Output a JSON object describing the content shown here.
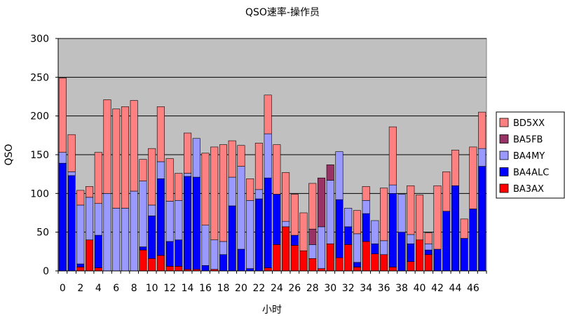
{
  "chart_data": {
    "type": "bar",
    "stacked": true,
    "title": "QSO速率-操作员",
    "xlabel": "小时",
    "ylabel": "QSO",
    "ylim": [
      0,
      300
    ],
    "y_ticks": [
      0,
      50,
      100,
      150,
      200,
      250,
      300
    ],
    "x_tick_labels": [
      "0",
      "2",
      "4",
      "6",
      "8",
      "10",
      "12",
      "14",
      "16",
      "18",
      "20",
      "22",
      "24",
      "26",
      "28",
      "30",
      "32",
      "34",
      "36",
      "38",
      "40",
      "42",
      "44",
      "46"
    ],
    "grid": true,
    "legend_position": "right",
    "categories": [
      "0",
      "1",
      "2",
      "3",
      "4",
      "5",
      "6",
      "7",
      "8",
      "9",
      "10",
      "11",
      "12",
      "13",
      "14",
      "15",
      "16",
      "17",
      "18",
      "19",
      "20",
      "21",
      "22",
      "23",
      "24",
      "25",
      "26",
      "27",
      "28",
      "29",
      "30",
      "31",
      "32",
      "33",
      "34",
      "35",
      "36",
      "37",
      "38",
      "39",
      "40",
      "41",
      "42",
      "43",
      "44",
      "45",
      "46",
      "47"
    ],
    "series": [
      {
        "name": "BA3AX",
        "color": "#ff0000",
        "values": [
          0,
          0,
          5,
          40,
          4,
          0,
          0,
          0,
          0,
          27,
          16,
          20,
          6,
          6,
          2,
          2,
          0,
          2,
          0,
          0,
          0,
          0,
          0,
          4,
          34,
          57,
          33,
          26,
          16,
          3,
          35,
          17,
          34,
          5,
          38,
          22,
          21,
          5,
          0,
          12,
          40,
          21,
          0,
          0,
          0,
          0,
          0,
          0
        ]
      },
      {
        "name": "BA4ALC",
        "color": "#0000ff",
        "values": [
          139,
          123,
          4,
          0,
          42,
          0,
          0,
          0,
          0,
          4,
          55,
          99,
          32,
          34,
          120,
          119,
          7,
          0,
          21,
          84,
          28,
          3,
          93,
          116,
          65,
          0,
          13,
          0,
          0,
          0,
          0,
          75,
          23,
          6,
          36,
          13,
          0,
          95,
          50,
          23,
          0,
          6,
          28,
          77,
          110,
          42,
          80,
          135
        ]
      },
      {
        "name": "BA4MY",
        "color": "#9999ff",
        "values": [
          14,
          5,
          76,
          55,
          41,
          100,
          81,
          81,
          103,
          85,
          14,
          22,
          52,
          51,
          4,
          50,
          52,
          38,
          17,
          37,
          107,
          88,
          12,
          57,
          0,
          7,
          0,
          0,
          18,
          54,
          82,
          62,
          24,
          37,
          17,
          30,
          18,
          11,
          49,
          12,
          0,
          8,
          0,
          0,
          0,
          0,
          0,
          23
        ]
      },
      {
        "name": "BA5FB",
        "color": "#993366",
        "values": [
          0,
          0,
          0,
          0,
          0,
          0,
          0,
          0,
          0,
          0,
          0,
          0,
          0,
          0,
          0,
          0,
          0,
          0,
          0,
          0,
          0,
          0,
          0,
          0,
          0,
          0,
          0,
          0,
          20,
          63,
          20,
          0,
          0,
          0,
          0,
          0,
          0,
          0,
          0,
          0,
          0,
          0,
          0,
          0,
          0,
          0,
          0,
          0
        ]
      },
      {
        "name": "BD5XX",
        "color": "#ff8080",
        "values": [
          96,
          48,
          19,
          14,
          66,
          121,
          128,
          131,
          117,
          28,
          73,
          71,
          55,
          35,
          52,
          0,
          93,
          120,
          125,
          47,
          27,
          28,
          60,
          50,
          64,
          63,
          53,
          49,
          59,
          0,
          0,
          0,
          0,
          30,
          18,
          0,
          68,
          75,
          0,
          63,
          58,
          14,
          82,
          51,
          46,
          25,
          80,
          47
        ]
      }
    ]
  }
}
